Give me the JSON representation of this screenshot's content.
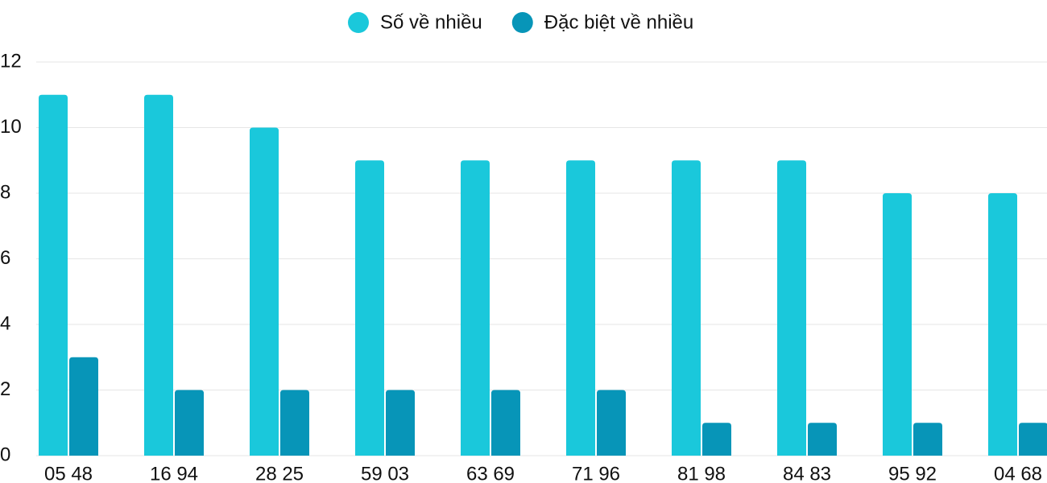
{
  "chart_data": {
    "type": "bar",
    "categories": [
      "05 48",
      "16 94",
      "28 25",
      "59 03",
      "63 69",
      "71 96",
      "81 98",
      "84 83",
      "95 92",
      "04 68"
    ],
    "series": [
      {
        "name": "Số về nhiều",
        "color": "#1ac8db",
        "values": [
          11,
          11,
          10,
          9,
          9,
          9,
          9,
          9,
          8,
          8
        ]
      },
      {
        "name": "Đặc biệt về nhiều",
        "color": "#0795b8",
        "values": [
          3,
          2,
          2,
          2,
          2,
          2,
          1,
          1,
          1,
          1
        ]
      }
    ],
    "ylim": [
      0,
      12
    ],
    "yticks": [
      0,
      2,
      4,
      6,
      8,
      10,
      12
    ],
    "grid": true,
    "legend": "top"
  }
}
